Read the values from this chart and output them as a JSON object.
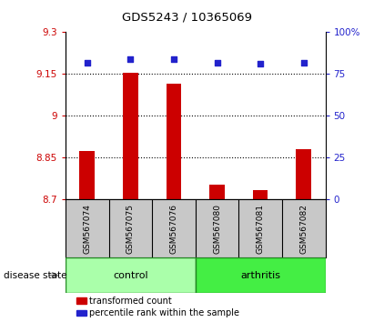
{
  "title": "GDS5243 / 10365069",
  "samples": [
    "GSM567074",
    "GSM567075",
    "GSM567076",
    "GSM567080",
    "GSM567081",
    "GSM567082"
  ],
  "bar_values": [
    8.875,
    9.155,
    9.115,
    8.755,
    8.735,
    8.88
  ],
  "percentile_values": [
    82,
    84,
    84,
    82,
    81,
    82
  ],
  "ylim_left": [
    8.7,
    9.3
  ],
  "ylim_right": [
    0,
    100
  ],
  "yticks_left": [
    8.7,
    8.85,
    9.0,
    9.15,
    9.3
  ],
  "ytick_labels_left": [
    "8.7",
    "8.85",
    "9",
    "9.15",
    "9.3"
  ],
  "yticks_right": [
    0,
    25,
    50,
    75,
    100
  ],
  "ytick_labels_right": [
    "0",
    "25",
    "50",
    "75",
    "100%"
  ],
  "bar_color": "#cc0000",
  "dot_color": "#2222cc",
  "bar_bottom": 8.7,
  "grid_values": [
    8.85,
    9.0,
    9.15
  ],
  "groups": [
    {
      "label": "control",
      "indices": [
        0,
        1,
        2
      ],
      "color": "#aaffaa"
    },
    {
      "label": "arthritis",
      "indices": [
        3,
        4,
        5
      ],
      "color": "#44ee44"
    }
  ],
  "disease_state_label": "disease state",
  "legend_items": [
    {
      "color": "#cc0000",
      "label": "transformed count"
    },
    {
      "color": "#2222cc",
      "label": "percentile rank within the sample"
    }
  ],
  "label_color_left": "#cc0000",
  "label_color_right": "#2222cc",
  "bg_gray": "#c8c8c8"
}
